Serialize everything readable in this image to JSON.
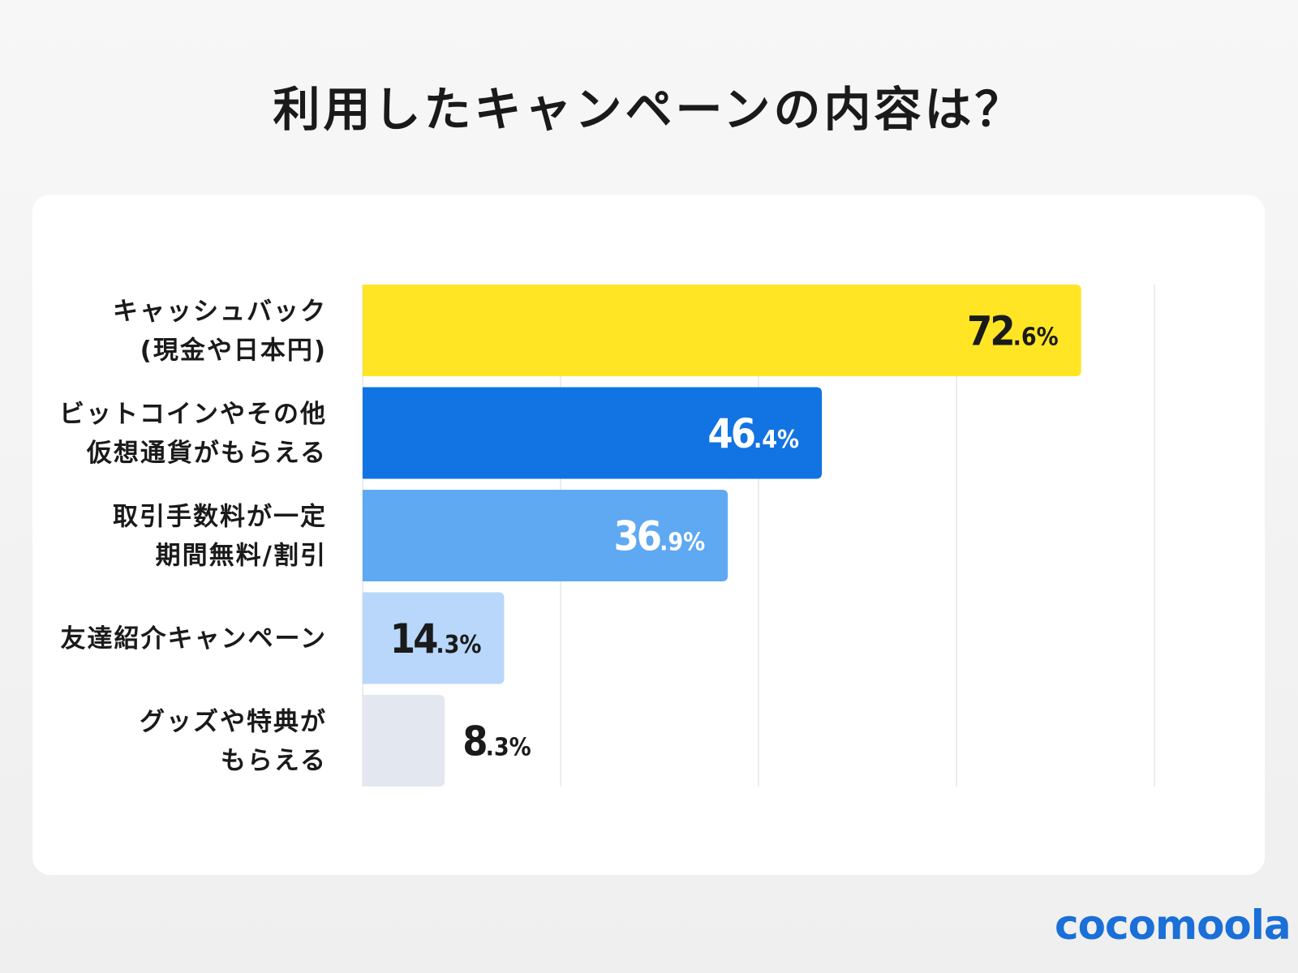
{
  "title": "利用したキャンペーンの内容は？",
  "logo": "cocomoola",
  "chart_data": {
    "type": "bar",
    "orientation": "horizontal",
    "categories": [
      [
        "キャッシュバック",
        "(現金や日本円)"
      ],
      [
        "ビットコインやその他",
        "仮想通貨がもらえる"
      ],
      [
        "取引手数料が一定",
        "期間無料/割引"
      ],
      [
        "友達紹介キャンペーン"
      ],
      [
        "グッズや特典が",
        "もらえる"
      ]
    ],
    "values": [
      72.6,
      46.4,
      36.9,
      14.3,
      8.3
    ],
    "unit": "%",
    "colors": [
      "#ffe523",
      "#1273e2",
      "#5fa9f2",
      "#b8d7fa",
      "#e3e8f0"
    ],
    "label_colors": [
      "#1a1a1a",
      "#ffffff",
      "#ffffff",
      "#1a1a1a",
      "#1a1a1a"
    ],
    "xlim": [
      0,
      80
    ],
    "grid": true,
    "grid_step": 20
  }
}
